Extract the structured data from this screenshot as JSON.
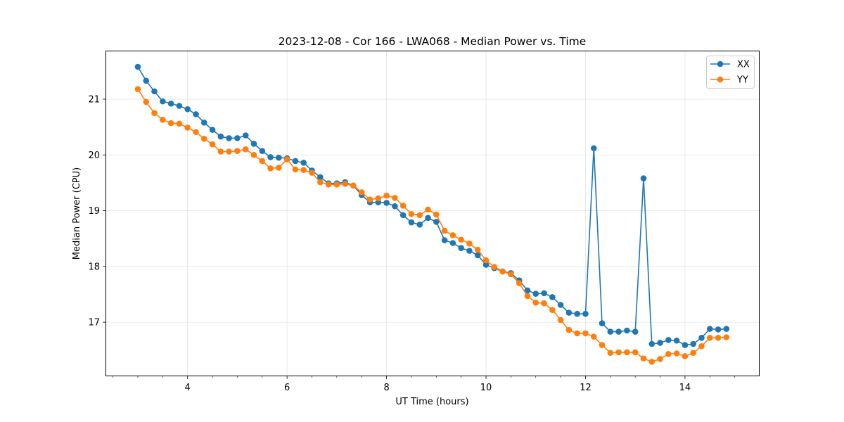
{
  "chart_data": {
    "type": "line",
    "title": "2023-12-08 - Cor 166 - LWA068 - Median Power vs. Time",
    "xlabel": "UT Time (hours)",
    "ylabel": "Median Power (CPU)",
    "xlim": [
      2.35,
      15.5
    ],
    "ylim": [
      16.03,
      21.87
    ],
    "x_ticks": [
      4,
      6,
      8,
      10,
      12,
      14
    ],
    "x_tick_labels": [
      "4",
      "6",
      "8",
      "10",
      "12",
      "14"
    ],
    "y_ticks": [
      17,
      18,
      19,
      20,
      21
    ],
    "y_tick_labels": [
      "17",
      "18",
      "19",
      "20",
      "21"
    ],
    "grid": true,
    "legend_position": "top-right",
    "x": [
      3.0,
      3.167,
      3.333,
      3.5,
      3.667,
      3.833,
      4.0,
      4.167,
      4.333,
      4.5,
      4.667,
      4.833,
      5.0,
      5.167,
      5.333,
      5.5,
      5.667,
      5.833,
      6.0,
      6.167,
      6.333,
      6.5,
      6.667,
      6.833,
      7.0,
      7.167,
      7.333,
      7.5,
      7.667,
      7.833,
      8.0,
      8.167,
      8.333,
      8.5,
      8.667,
      8.833,
      9.0,
      9.167,
      9.333,
      9.5,
      9.667,
      9.833,
      10.0,
      10.167,
      10.333,
      10.5,
      10.667,
      10.833,
      11.0,
      11.167,
      11.333,
      11.5,
      11.667,
      11.833,
      12.0,
      12.167,
      12.333,
      12.5,
      12.667,
      12.833,
      13.0,
      13.167,
      13.333,
      13.5,
      13.667,
      13.833,
      14.0,
      14.167,
      14.333,
      14.5,
      14.667,
      14.833
    ],
    "series": [
      {
        "name": "XX",
        "color": "#1f77b4",
        "values": [
          21.58,
          21.33,
          21.14,
          20.96,
          20.92,
          20.88,
          20.82,
          20.73,
          20.58,
          20.45,
          20.33,
          20.3,
          20.3,
          20.35,
          20.2,
          20.07,
          19.96,
          19.95,
          19.94,
          19.89,
          19.86,
          19.72,
          19.6,
          19.49,
          19.49,
          19.51,
          19.45,
          19.28,
          19.15,
          19.15,
          19.14,
          19.08,
          18.92,
          18.79,
          18.75,
          18.87,
          18.8,
          18.47,
          18.42,
          18.33,
          18.28,
          18.2,
          18.03,
          17.97,
          17.91,
          17.88,
          17.75,
          17.57,
          17.51,
          17.52,
          17.45,
          17.31,
          17.17,
          17.15,
          17.15,
          20.12,
          16.98,
          16.83,
          16.83,
          16.85,
          16.83,
          19.58,
          16.61,
          16.63,
          16.68,
          16.67,
          16.59,
          16.61,
          16.72,
          16.88,
          16.87,
          16.88
        ]
      },
      {
        "name": "YY",
        "color": "#ff7f0e",
        "values": [
          21.18,
          20.95,
          20.75,
          20.63,
          20.57,
          20.56,
          20.49,
          20.41,
          20.29,
          20.19,
          20.06,
          20.06,
          20.07,
          20.1,
          20.0,
          19.89,
          19.76,
          19.77,
          19.92,
          19.74,
          19.73,
          19.68,
          19.51,
          19.47,
          19.47,
          19.48,
          19.45,
          19.33,
          19.2,
          19.22,
          19.27,
          19.23,
          19.09,
          18.94,
          18.92,
          19.02,
          18.93,
          18.64,
          18.56,
          18.48,
          18.41,
          18.3,
          18.11,
          17.99,
          17.91,
          17.86,
          17.7,
          17.47,
          17.35,
          17.34,
          17.22,
          17.04,
          16.86,
          16.8,
          16.8,
          16.74,
          16.59,
          16.45,
          16.46,
          16.46,
          16.46,
          16.35,
          16.29,
          16.34,
          16.43,
          16.44,
          16.39,
          16.45,
          16.57,
          16.72,
          16.72,
          16.73
        ]
      }
    ]
  }
}
